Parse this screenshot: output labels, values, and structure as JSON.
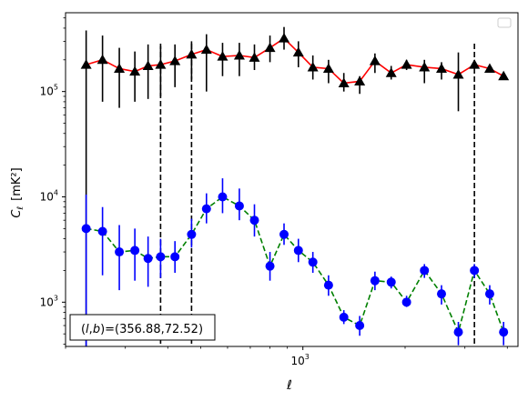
{
  "chart_data": {
    "type": "scatter",
    "title": "",
    "xlabel": "ℓ",
    "ylabel_main": "C",
    "ylabel_sub": "ℓ",
    "ylabel_unit": "[mK²]",
    "x_scale": "log",
    "y_scale": "log",
    "xlim": [
      200,
      4300
    ],
    "ylim": [
      380,
      560000
    ],
    "x_ticks": [
      {
        "value": 1000,
        "base": "10",
        "exp": "3"
      }
    ],
    "y_ticks": [
      {
        "value": 1000,
        "base": "10",
        "exp": "3"
      },
      {
        "value": 10000,
        "base": "10",
        "exp": "4"
      },
      {
        "value": 100000,
        "base": "10",
        "exp": "5"
      }
    ],
    "grid": false,
    "legend": "top-right (empty)",
    "vlines": [
      381,
      470,
      3200
    ],
    "annotation": "(l,b)=(356.88,72.52)",
    "series": [
      {
        "marker": "triangle",
        "color": "#000000",
        "line_color": "#ff0000",
        "line_style": "solid",
        "x": [
          230,
          257,
          288,
          320,
          350,
          381,
          420,
          470,
          520,
          580,
          650,
          720,
          800,
          880,
          970,
          1070,
          1190,
          1320,
          1470,
          1630,
          1820,
          2020,
          2280,
          2560,
          2870,
          3200,
          3550,
          3900
        ],
        "y": [
          180000,
          200000,
          165000,
          155000,
          175000,
          180000,
          195000,
          225000,
          250000,
          215000,
          220000,
          210000,
          260000,
          320000,
          235000,
          170000,
          165000,
          120000,
          125000,
          195000,
          150000,
          180000,
          170000,
          165000,
          145000,
          180000,
          165000,
          140000
        ],
        "y_lo": [
          380,
          80000,
          70000,
          80000,
          85000,
          90000,
          110000,
          130000,
          100000,
          140000,
          140000,
          160000,
          190000,
          250000,
          170000,
          130000,
          120000,
          100000,
          95000,
          150000,
          130000,
          160000,
          120000,
          130000,
          65000,
          180000,
          165000,
          140000
        ],
        "y_hi": [
          380000,
          340000,
          260000,
          240000,
          280000,
          270000,
          280000,
          300000,
          350000,
          290000,
          290000,
          280000,
          340000,
          410000,
          300000,
          220000,
          200000,
          150000,
          140000,
          230000,
          175000,
          200000,
          200000,
          190000,
          235000,
          180000,
          165000,
          140000
        ]
      },
      {
        "marker": "circle",
        "color": "#0000ff",
        "line_color": "#008000",
        "line_style": "dashed",
        "x": [
          230,
          257,
          288,
          320,
          350,
          381,
          420,
          470,
          520,
          580,
          650,
          720,
          800,
          880,
          970,
          1070,
          1190,
          1320,
          1470,
          1630,
          1820,
          2020,
          2280,
          2560,
          2870,
          3200,
          3550,
          3900
        ],
        "y": [
          5000,
          4700,
          3000,
          3100,
          2600,
          2700,
          2700,
          4400,
          7700,
          10000,
          8200,
          6000,
          2200,
          4400,
          3100,
          2400,
          1450,
          720,
          600,
          1600,
          1550,
          1000,
          2000,
          1200,
          520,
          2000,
          1200,
          520
        ],
        "y_lo": [
          380,
          1800,
          1300,
          1600,
          1400,
          1700,
          1900,
          3300,
          5600,
          7000,
          6000,
          4200,
          1600,
          3500,
          2400,
          1900,
          1150,
          620,
          480,
          1300,
          1350,
          900,
          1700,
          950,
          390,
          1700,
          950,
          390
        ],
        "y_hi": [
          10500,
          8000,
          5400,
          5000,
          4200,
          4000,
          3800,
          6200,
          10800,
          15000,
          12000,
          8500,
          3000,
          5600,
          4000,
          3000,
          1800,
          840,
          740,
          1950,
          1750,
          1150,
          2300,
          1450,
          650,
          2300,
          1450,
          650
        ]
      }
    ]
  }
}
